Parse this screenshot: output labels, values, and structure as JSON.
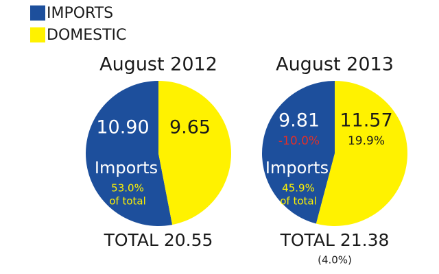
{
  "legend": {
    "labels": [
      "IMPORTS",
      "DOMESTIC"
    ],
    "colors": [
      "#1d4f9c",
      "#fff200"
    ]
  },
  "chart_data": [
    {
      "type": "pie",
      "title": "August 2012",
      "values": [
        10.9,
        9.65
      ],
      "value_labels": [
        "10.90",
        "9.65"
      ],
      "colors": [
        "#1d4f9c",
        "#fff200"
      ],
      "annotations": [
        "Imports",
        "53.0%",
        "of total"
      ],
      "total_label": "TOTAL 20.55"
    },
    {
      "type": "pie",
      "title": "August 2013",
      "values": [
        9.81,
        11.57
      ],
      "value_labels": [
        "9.81",
        "11.57"
      ],
      "colors": [
        "#1d4f9c",
        "#fff200"
      ],
      "changes": [
        "-10.0%",
        "19.9%"
      ],
      "annotations": [
        "Imports",
        "45.9%",
        "of total"
      ],
      "total_label": "TOTAL 21.38",
      "total_change": "(4.0%)"
    }
  ]
}
